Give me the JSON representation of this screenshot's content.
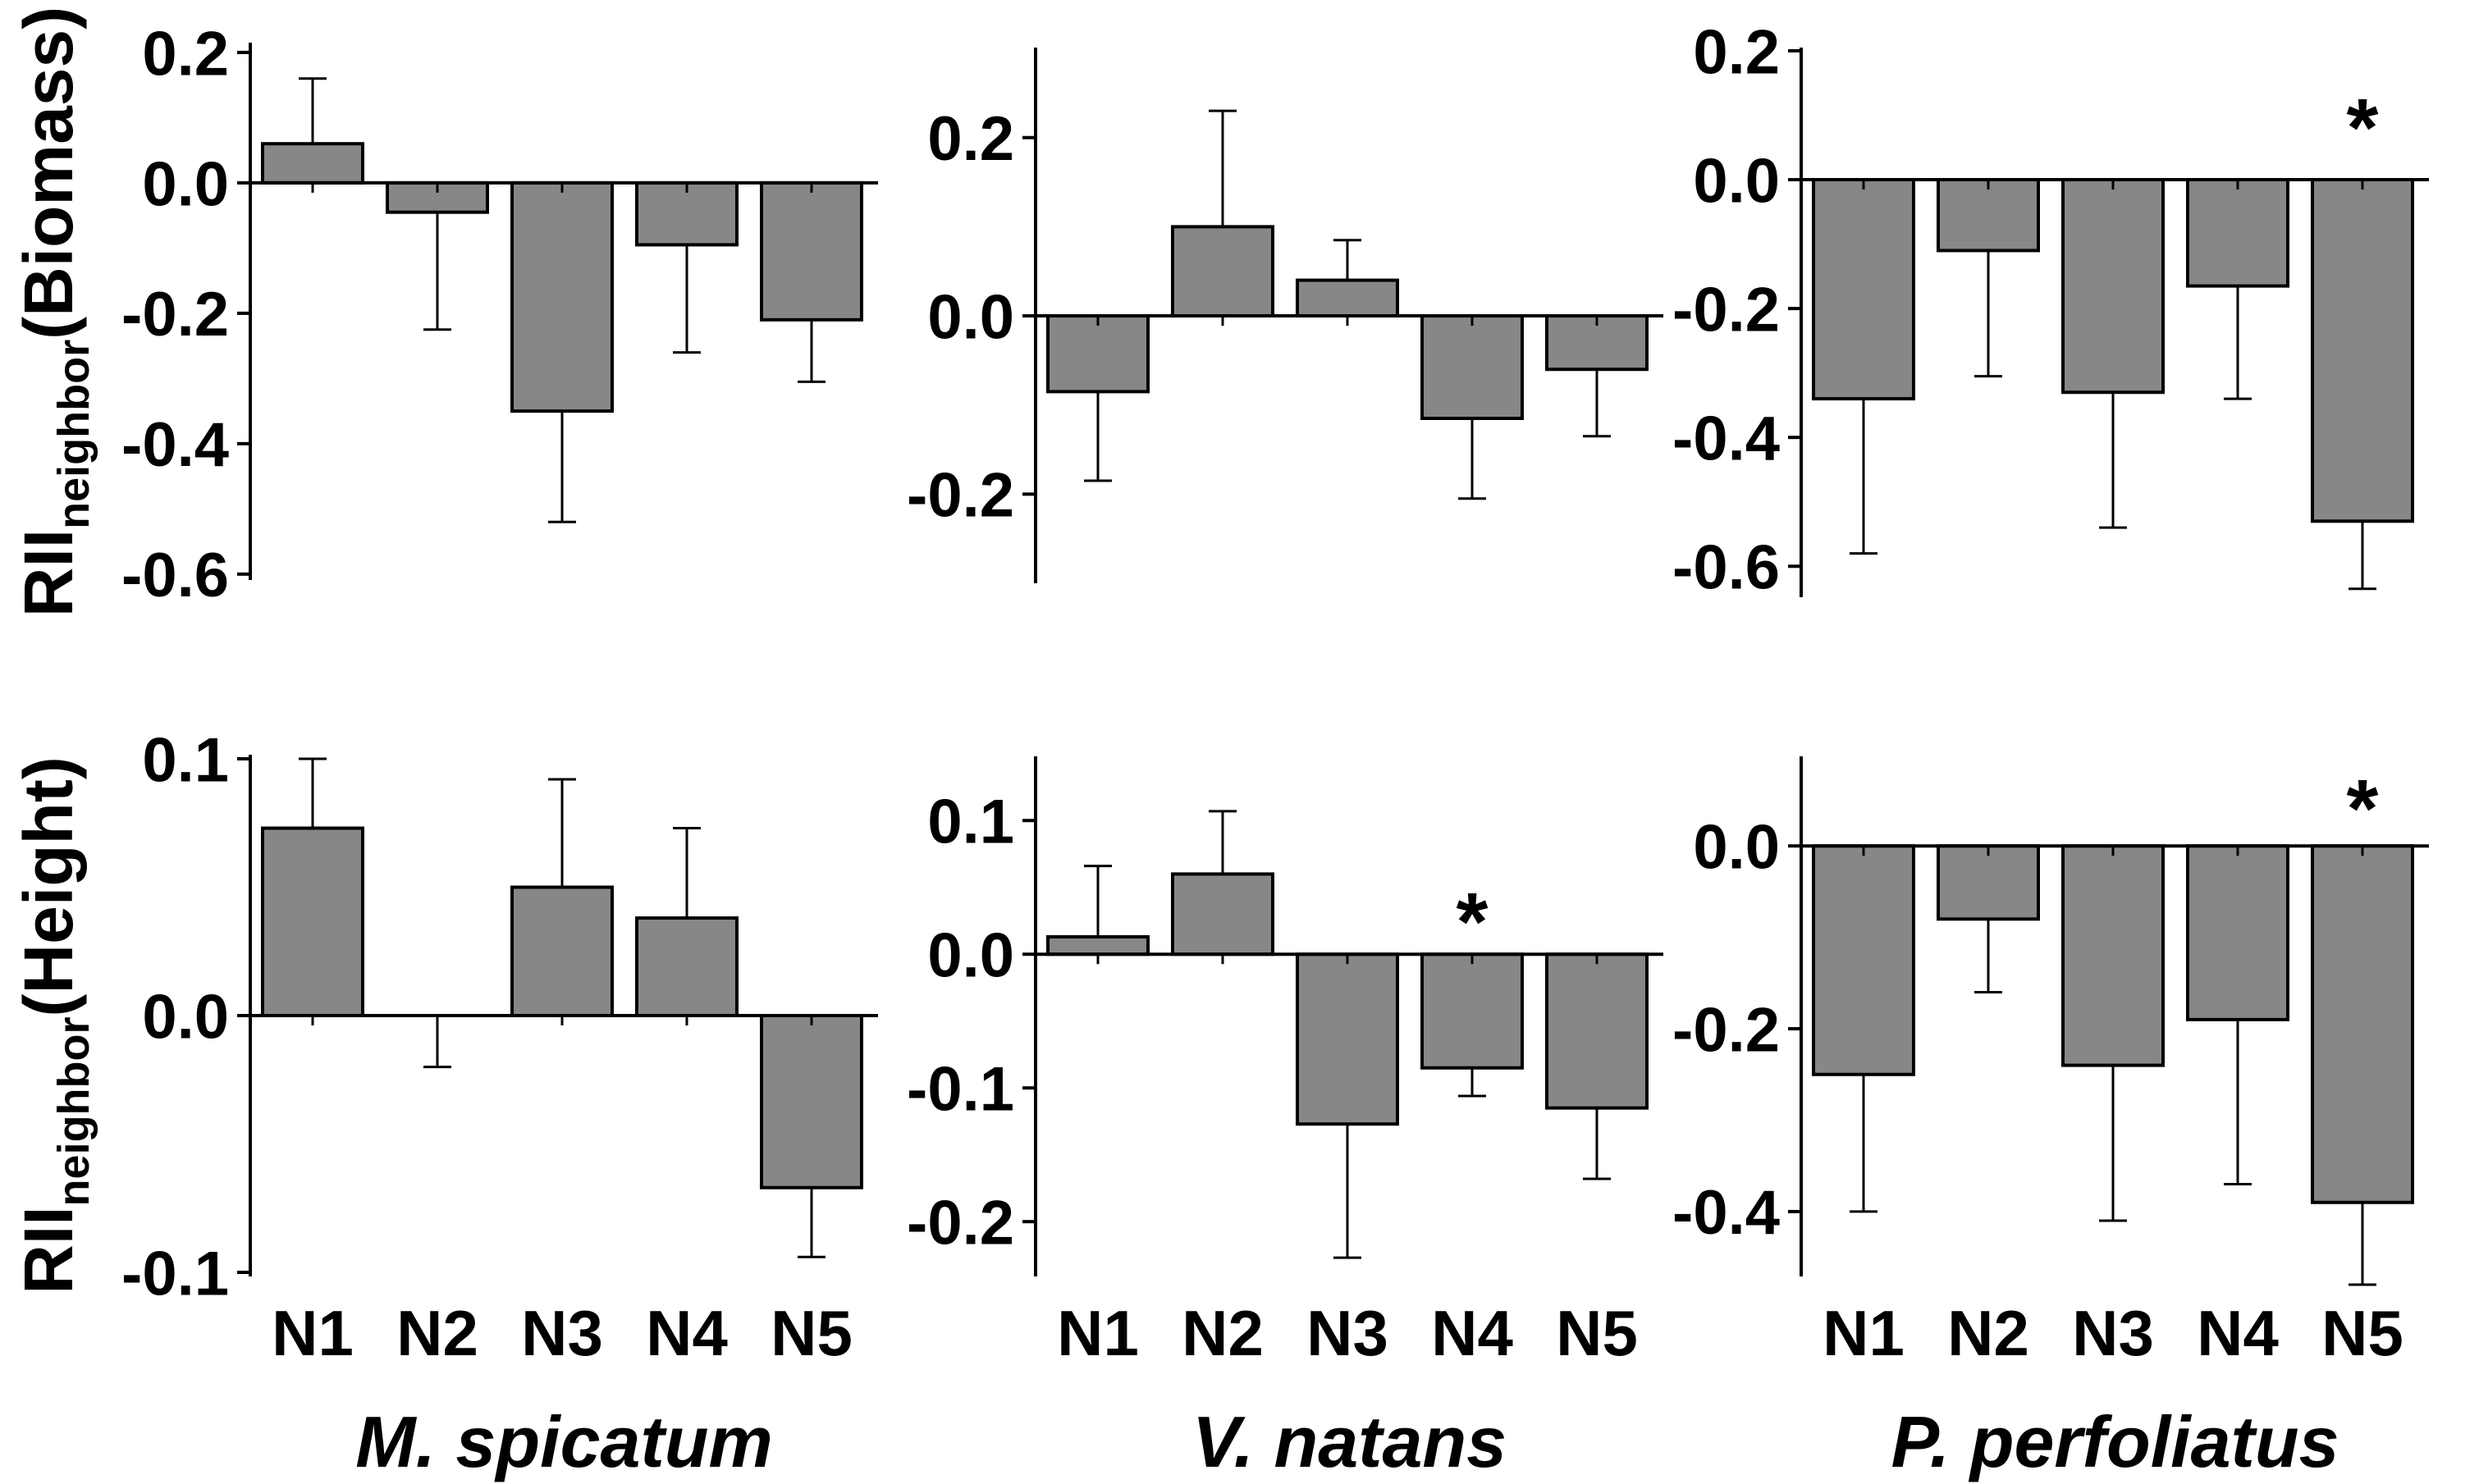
{
  "figure": {
    "background": "#ffffff",
    "bar_fill": "#878787",
    "bar_stroke": "#000000",
    "axis_color": "#000000",
    "significance_marker": "*",
    "categories": [
      "N1",
      "N2",
      "N3",
      "N4",
      "N5"
    ],
    "species_labels": [
      "M. spicatum",
      "V. natans",
      "P. perfoliatus"
    ],
    "row_labels": [
      {
        "prefix": "RII",
        "subscript": "neighbor",
        "suffix": "(Biomass)"
      },
      {
        "prefix": "RII",
        "subscript": "neighbor",
        "suffix": "(Height)"
      }
    ]
  },
  "chart_data": [
    {
      "id": "biomass-m-spicatum",
      "type": "bar",
      "row": 0,
      "col": 0,
      "measure": "Biomass",
      "species": "M. spicatum",
      "categories": [
        "N1",
        "N2",
        "N3",
        "N4",
        "N5"
      ],
      "values": [
        0.06,
        -0.045,
        -0.35,
        -0.095,
        -0.21
      ],
      "errors": [
        0.1,
        0.18,
        0.17,
        0.165,
        0.095
      ],
      "significant": [],
      "yticks": [
        {
          "v": 0.2,
          "label": "0.2"
        },
        {
          "v": 0.0,
          "label": "0.0"
        },
        {
          "v": -0.2,
          "label": "-0.2"
        },
        {
          "v": -0.4,
          "label": "-0.4"
        },
        {
          "v": -0.6,
          "label": "-0.6"
        }
      ],
      "ylim": [
        -0.609,
        0.215
      ],
      "ylabel": "RII_neighbor (Biomass)",
      "legend": "none",
      "grid": false
    },
    {
      "id": "biomass-v-natans",
      "type": "bar",
      "row": 0,
      "col": 1,
      "measure": "Biomass",
      "species": "V. natans",
      "categories": [
        "N1",
        "N2",
        "N3",
        "N4",
        "N5"
      ],
      "values": [
        -0.085,
        0.1,
        0.04,
        -0.115,
        -0.06
      ],
      "errors": [
        0.1,
        0.13,
        0.045,
        0.09,
        0.075
      ],
      "significant": [],
      "yticks": [
        {
          "v": 0.2,
          "label": "0.2"
        },
        {
          "v": 0.0,
          "label": "0.0"
        },
        {
          "v": -0.2,
          "label": "-0.2"
        }
      ],
      "ylim": [
        -0.3,
        0.301
      ],
      "ylabel": "RII_neighbor (Biomass)",
      "legend": "none",
      "grid": false
    },
    {
      "id": "biomass-p-perfoliatus",
      "type": "bar",
      "row": 0,
      "col": 2,
      "measure": "Biomass",
      "species": "P. perfoliatus",
      "categories": [
        "N1",
        "N2",
        "N3",
        "N4",
        "N5"
      ],
      "values": [
        -0.34,
        -0.11,
        -0.33,
        -0.165,
        -0.53
      ],
      "errors": [
        0.24,
        0.195,
        0.21,
        0.175,
        0.105
      ],
      "significant": [
        "N5"
      ],
      "yticks": [
        {
          "v": 0.2,
          "label": "0.2"
        },
        {
          "v": 0.0,
          "label": "0.0"
        },
        {
          "v": -0.2,
          "label": "-0.2"
        },
        {
          "v": -0.4,
          "label": "-0.4"
        },
        {
          "v": -0.6,
          "label": "-0.6"
        }
      ],
      "ylim": [
        -0.648,
        0.205
      ],
      "ylabel": "RII_neighbor (Biomass)",
      "legend": "none",
      "grid": false
    },
    {
      "id": "height-m-spicatum",
      "type": "bar",
      "row": 1,
      "col": 0,
      "measure": "Height",
      "species": "M. spicatum",
      "categories": [
        "N1",
        "N2",
        "N3",
        "N4",
        "N5"
      ],
      "values": [
        0.073,
        -0.002,
        0.05,
        0.038,
        -0.067
      ],
      "errors": [
        0.027,
        0.018,
        0.042,
        0.035,
        0.027
      ],
      "significant": [],
      "yticks": [
        {
          "v": 0.1,
          "label": "0.1"
        },
        {
          "v": 0.0,
          "label": "0.0"
        },
        {
          "v": -0.1,
          "label": "-0.1"
        }
      ],
      "ylim": [
        -0.1016,
        0.1016
      ],
      "ylabel": "RII_neighbor (Height)",
      "legend": "none",
      "grid": false
    },
    {
      "id": "height-v-natans",
      "type": "bar",
      "row": 1,
      "col": 1,
      "measure": "Height",
      "species": "V. natans",
      "categories": [
        "N1",
        "N2",
        "N3",
        "N4",
        "N5"
      ],
      "values": [
        0.013,
        0.06,
        -0.127,
        -0.085,
        -0.115
      ],
      "errors": [
        0.053,
        0.047,
        0.1,
        0.021,
        0.053
      ],
      "significant": [
        "N4"
      ],
      "yticks": [
        {
          "v": 0.1,
          "label": "0.1"
        },
        {
          "v": 0.0,
          "label": "0.0"
        },
        {
          "v": -0.1,
          "label": "-0.1"
        },
        {
          "v": -0.2,
          "label": "-0.2"
        }
      ],
      "ylim": [
        -0.241,
        0.148
      ],
      "ylabel": "RII_neighbor (Height)",
      "legend": "none",
      "grid": false
    },
    {
      "id": "height-p-perfoliatus",
      "type": "bar",
      "row": 1,
      "col": 2,
      "measure": "Height",
      "species": "P. perfoliatus",
      "categories": [
        "N1",
        "N2",
        "N3",
        "N4",
        "N5"
      ],
      "values": [
        -0.25,
        -0.08,
        -0.24,
        -0.19,
        -0.39
      ],
      "errors": [
        0.15,
        0.08,
        0.17,
        0.18,
        0.09
      ],
      "significant": [
        "N5"
      ],
      "yticks": [
        {
          "v": 0.0,
          "label": "0.0"
        },
        {
          "v": -0.2,
          "label": "-0.2"
        },
        {
          "v": -0.4,
          "label": "-0.4"
        }
      ],
      "ylim": [
        -0.471,
        0.098
      ],
      "ylabel": "RII_neighbor (Height)",
      "legend": "none",
      "grid": false
    }
  ]
}
